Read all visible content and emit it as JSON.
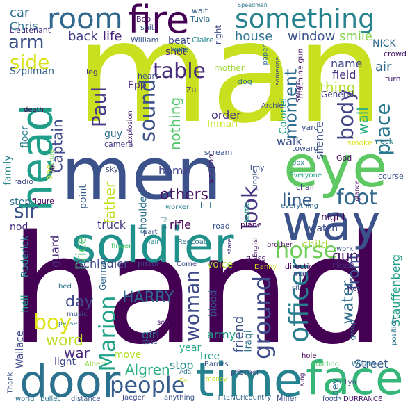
{
  "wordcloud": {
    "words": [
      {
        "text": "man",
        "color": "#c8e020"
      },
      {
        "text": "hand",
        "color": "#440154"
      },
      {
        "text": "men",
        "color": "#3b528b"
      },
      {
        "text": "eye",
        "color": "#5ec962"
      },
      {
        "text": "soldier",
        "color": "#21918c"
      },
      {
        "text": "way",
        "color": "#3b528b"
      },
      {
        "text": "time",
        "color": "#26828e"
      },
      {
        "text": "face",
        "color": "#35b779"
      },
      {
        "text": "door",
        "color": "#2c728e"
      },
      {
        "text": "head",
        "color": "#1f9e89"
      },
      {
        "text": "fire",
        "color": "#440154"
      },
      {
        "text": "room",
        "color": "#31688e"
      },
      {
        "text": "something",
        "color": "#26828e"
      },
      {
        "text": "foot",
        "color": "#31688e"
      },
      {
        "text": "horse",
        "color": "#6ece58"
      },
      {
        "text": "officer",
        "color": "#287d8e"
      },
      {
        "text": "sound",
        "color": "#3b528b"
      },
      {
        "text": "look",
        "color": "#46337f"
      },
      {
        "text": "body",
        "color": "#414487"
      },
      {
        "text": "ground",
        "color": "#3e4a89"
      },
      {
        "text": "Marion",
        "color": "#1fa287"
      },
      {
        "text": "people",
        "color": "#365c8d"
      },
      {
        "text": "boy",
        "color": "#dde318"
      },
      {
        "text": "woman",
        "color": "#3e4a89"
      },
      {
        "text": "Paul",
        "color": "#443983"
      },
      {
        "text": "table",
        "color": "#472d7b"
      },
      {
        "text": "place",
        "color": "#2a788e"
      },
      {
        "text": "moment",
        "color": "#2e6e8e"
      },
      {
        "text": "side",
        "color": "#d8e219"
      },
      {
        "text": "arm",
        "color": "#3b528b"
      },
      {
        "text": "sir",
        "color": "#3b528b"
      },
      {
        "text": "HARRY",
        "color": "#31688e"
      },
      {
        "text": "day",
        "color": "#3e4a89"
      },
      {
        "text": "word",
        "color": "#bddf26"
      },
      {
        "text": "Algren",
        "color": "#2ab07f"
      },
      {
        "text": "water",
        "color": "#2e6e8e"
      },
      {
        "text": "front",
        "color": "#3d4e8a"
      },
      {
        "text": "line",
        "color": "#365c8d"
      },
      {
        "text": "wall",
        "color": "#29af7f"
      },
      {
        "text": "others",
        "color": "#481467"
      },
      {
        "text": "gun",
        "color": "#481769"
      },
      {
        "text": "war",
        "color": "#482878"
      },
      {
        "text": "nothing",
        "color": "#52c569"
      },
      {
        "text": "Captain",
        "color": "#3e4a89"
      },
      {
        "text": "father",
        "color": "#c2df23"
      },
      {
        "text": "Price",
        "color": "#4ac16d"
      },
      {
        "text": "thing",
        "color": "#b5de2b"
      },
      {
        "text": "window",
        "color": "#3b528b"
      },
      {
        "text": "house",
        "color": "#2c728e"
      },
      {
        "text": "smile",
        "color": "#84d44b"
      },
      {
        "text": "life",
        "color": "#482475"
      },
      {
        "text": "back",
        "color": "#433e85"
      },
      {
        "text": "car",
        "color": "#2d708e"
      },
      {
        "text": "Chris",
        "color": "#2c728e"
      },
      {
        "text": "friend",
        "color": "#3b528b"
      },
      {
        "text": "home",
        "color": "#414487"
      },
      {
        "text": "guard",
        "color": "#482878"
      },
      {
        "text": "Schindler",
        "color": "#3e4a89"
      },
      {
        "text": "army",
        "color": "#1fa187"
      },
      {
        "text": "girl",
        "color": "#2a788e"
      },
      {
        "text": "Street",
        "color": "#365c8d"
      },
      {
        "text": "Wallace",
        "color": "#3e4a89"
      },
      {
        "text": "rifle",
        "color": "#440154"
      },
      {
        "text": "child",
        "color": "#9fda3a"
      },
      {
        "text": "truck",
        "color": "#443a83"
      },
      {
        "text": "name",
        "color": "#404688"
      },
      {
        "text": "field",
        "color": "#46327e"
      },
      {
        "text": "air",
        "color": "#31688e"
      },
      {
        "text": "Szpilman",
        "color": "#34608d"
      },
      {
        "text": "Inman",
        "color": "#c8e020"
      },
      {
        "text": "order",
        "color": "#46327e"
      },
      {
        "text": "walk",
        "color": "#3b528b"
      },
      {
        "text": "silence",
        "color": "#3d4e8a"
      },
      {
        "text": "Stauffenberg",
        "color": "#1f9f88"
      },
      {
        "text": "shoulder",
        "color": "#2c728e"
      },
      {
        "text": "point",
        "color": "#375a8c"
      },
      {
        "text": "night",
        "color": "#440256"
      },
      {
        "text": "watch",
        "color": "#3d4e8a"
      },
      {
        "text": "voice",
        "color": "#a8db34"
      },
      {
        "text": "Epp",
        "color": "#482475"
      },
      {
        "text": "NICK",
        "color": "#31688e"
      },
      {
        "text": "beat",
        "color": "#3e4989"
      },
      {
        "text": "shot",
        "color": "#481f70"
      },
      {
        "text": "Iraqi",
        "color": "#2c728e"
      },
      {
        "text": "Joey",
        "color": "#2d708e"
      },
      {
        "text": "blood",
        "color": "#3a538b"
      },
      {
        "text": "stop",
        "color": "#228c8d"
      },
      {
        "text": "tree",
        "color": "#1f9e89"
      },
      {
        "text": "year",
        "color": "#22a785"
      },
      {
        "text": "move",
        "color": "#b2dd2d"
      },
      {
        "text": "light",
        "color": "#3e4a89"
      },
      {
        "text": "nod",
        "color": "#472f7d"
      },
      {
        "text": "step",
        "color": "#2e6f8e"
      },
      {
        "text": "family",
        "color": "#25858e"
      },
      {
        "text": "floor",
        "color": "#287c8e"
      },
      {
        "text": "guy",
        "color": "#2d708e"
      },
      {
        "text": "one",
        "color": "#c5e021"
      },
      {
        "text": "Roderick",
        "color": "#26828e"
      },
      {
        "text": "hell",
        "color": "#1fa188"
      },
      {
        "text": "German",
        "color": "#31688e"
      },
      {
        "text": "mother",
        "color": "#a0da39"
      },
      {
        "text": "right",
        "color": "#3e4a89"
      },
      {
        "text": "Colonel",
        "color": "#1f9e89"
      },
      {
        "text": "General",
        "color": "#433e85"
      },
      {
        "text": "crowd",
        "color": "#48186a"
      },
      {
        "text": "turn",
        "color": "#481b6d"
      },
      {
        "text": "leg",
        "color": "#462f7c"
      },
      {
        "text": "heart",
        "color": "#3b528b"
      },
      {
        "text": "Lieutenant",
        "color": "#46307e"
      },
      {
        "text": "Bob",
        "color": "#471164"
      },
      {
        "text": "wait",
        "color": "#34608d"
      },
      {
        "text": "Tuvia",
        "color": "#2e6e8e"
      },
      {
        "text": "shit",
        "color": "#3a548c"
      },
      {
        "text": "William",
        "color": "#3b528b"
      },
      {
        "text": "Claire",
        "color": "#23898e"
      },
      {
        "text": "wife",
        "color": "#2c728e"
      },
      {
        "text": "Speedman",
        "color": "#2c728e"
      },
      {
        "text": "paper",
        "color": "#2d718e"
      },
      {
        "text": "someone",
        "color": "#3e4a89"
      },
      {
        "text": "machine gun",
        "color": "#481769"
      },
      {
        "text": "sword",
        "color": "#482576"
      },
      {
        "text": "dog",
        "color": "#2c738e"
      },
      {
        "text": "Zu",
        "color": "#453882"
      },
      {
        "text": "death",
        "color": "#440154"
      },
      {
        "text": "Archie",
        "color": "#3e4a89"
      },
      {
        "text": "yard",
        "color": "#3b528b"
      },
      {
        "text": "smoke",
        "color": "#dde318"
      },
      {
        "text": "neck",
        "color": "#2c738e"
      },
      {
        "text": "toward",
        "color": "#3b528b"
      },
      {
        "text": "camera",
        "color": "#423f85"
      },
      {
        "text": "explosion",
        "color": "#482576"
      },
      {
        "text": "picture",
        "color": "#6ccd5a"
      },
      {
        "text": "scream",
        "color": "#3b528b"
      },
      {
        "text": "weapon",
        "color": "#470e61"
      },
      {
        "text": "God",
        "color": "#460b5e"
      },
      {
        "text": "box",
        "color": "#25838e"
      },
      {
        "text": "course",
        "color": "#3c4f8a"
      },
      {
        "text": "Everyone",
        "color": "#22a785"
      },
      {
        "text": "chair",
        "color": "#46327e"
      },
      {
        "text": "glance",
        "color": "#48186a"
      },
      {
        "text": "jungle",
        "color": "#3b528b"
      },
      {
        "text": "Troy",
        "color": "#3b528b"
      },
      {
        "text": "sky",
        "color": "#3f4889"
      },
      {
        "text": "radio",
        "color": "#3e4989"
      },
      {
        "text": "Mr",
        "color": "#48186a"
      },
      {
        "text": "figure",
        "color": "#440154"
      },
      {
        "text": "worker",
        "color": "#26828e"
      },
      {
        "text": "hill",
        "color": "#2d718e"
      },
      {
        "text": "battle",
        "color": "#1f9a8a"
      },
      {
        "text": "everything",
        "color": "#31688e"
      },
      {
        "text": "plane",
        "color": "#440154"
      },
      {
        "text": "road",
        "color": "#3b528b"
      },
      {
        "text": "part",
        "color": "#3d4e8a"
      },
      {
        "text": "hair",
        "color": "#25848e"
      },
      {
        "text": "Redcoat",
        "color": "#2c728e"
      },
      {
        "text": "stare",
        "color": "#46317e"
      },
      {
        "text": "English",
        "color": "#471063"
      },
      {
        "text": "brother",
        "color": "#460a5d"
      },
      {
        "text": "work",
        "color": "#3a538b"
      },
      {
        "text": "finger",
        "color": "#4cc26c"
      },
      {
        "text": "pistol",
        "color": "#433d84"
      },
      {
        "text": "Come",
        "color": "#3d4d8a"
      },
      {
        "text": "end",
        "color": "#2c728e"
      },
      {
        "text": "Danny",
        "color": "#c8e020"
      },
      {
        "text": "direction",
        "color": "#440154"
      },
      {
        "text": "map",
        "color": "#424186"
      },
      {
        "text": "Please",
        "color": "#472c7a"
      },
      {
        "text": "glass",
        "color": "#48186a"
      },
      {
        "text": "bed",
        "color": "#2c728e"
      },
      {
        "text": "music",
        "color": "#3b528b"
      },
      {
        "text": "pause",
        "color": "#2c738e"
      },
      {
        "text": "sit",
        "color": "#3a548c"
      },
      {
        "text": "son",
        "color": "#481769"
      },
      {
        "text": "gate",
        "color": "#3b528b"
      },
      {
        "text": "Hey",
        "color": "#482878"
      },
      {
        "text": "group",
        "color": "#31688e"
      },
      {
        "text": "position",
        "color": "#2c728e"
      },
      {
        "text": "hole",
        "color": "#440154"
      },
      {
        "text": "Barnes",
        "color": "#3b528b"
      },
      {
        "text": "Albert",
        "color": "#8fd744"
      },
      {
        "text": "Thank",
        "color": "#3b528b"
      },
      {
        "text": "world",
        "color": "#2d708e"
      },
      {
        "text": "bullet",
        "color": "#2c728e"
      },
      {
        "text": "distance",
        "color": "#3a538b"
      },
      {
        "text": "Jaeger",
        "color": "#3e4a89"
      },
      {
        "text": "anything",
        "color": "#3b528b"
      },
      {
        "text": "TRENCH",
        "color": "#31688e"
      },
      {
        "text": "country",
        "color": "#34618d"
      },
      {
        "text": "Miller",
        "color": "#3d4e8a"
      },
      {
        "text": "food",
        "color": "#3b528b"
      },
      {
        "text": "DURRANCE",
        "color": "#481a6c"
      },
      {
        "text": "prisoner",
        "color": "#3e4a89"
      },
      {
        "text": "money",
        "color": "#c2df23"
      },
      {
        "text": "Lyn",
        "color": "#3e4a89"
      },
      {
        "text": "Willard",
        "color": "#2c728e"
      },
      {
        "text": "building",
        "color": "#52c569"
      },
      {
        "text": "King",
        "color": "#481769"
      },
      {
        "text": "Ada",
        "color": "#2c728e"
      },
      {
        "text": "Dar",
        "color": "#c8e020"
      }
    ]
  }
}
